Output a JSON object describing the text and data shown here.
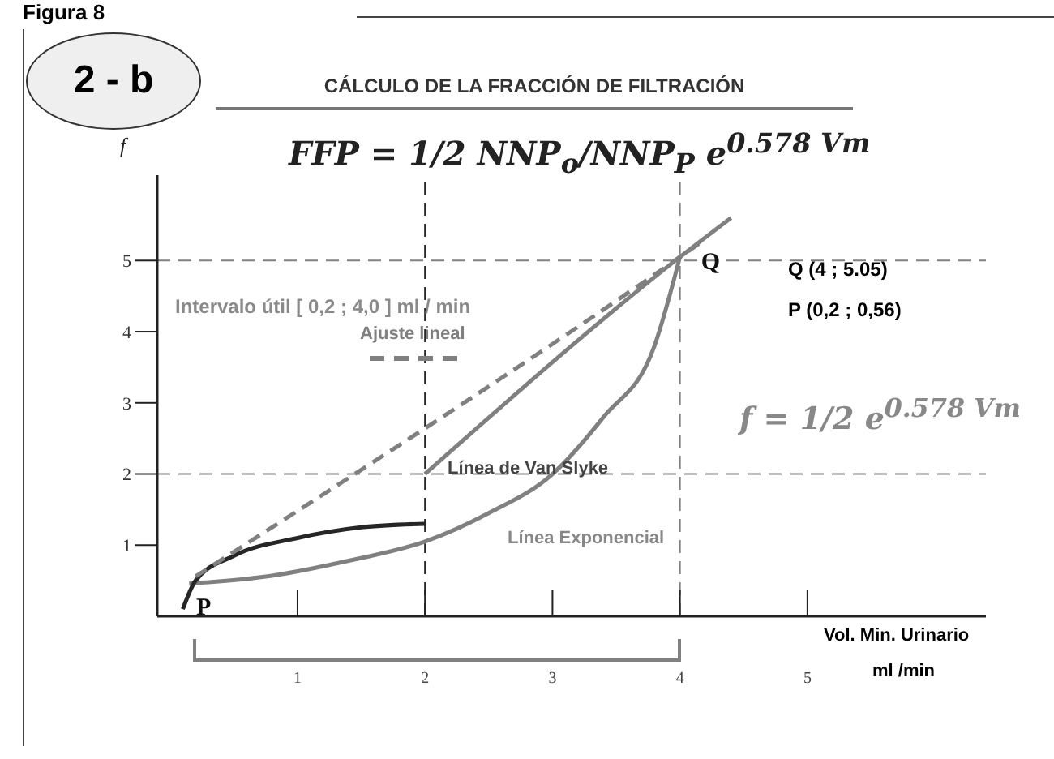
{
  "chart_data": {
    "type": "line",
    "title": "CÁLCULO DE LA FRACCIÓN DE FILTRACIÓN",
    "xlabel": "Vol. Min. Urinario\nml /min",
    "ylabel": "f",
    "xlim": [
      -0.1,
      6.4
    ],
    "xticks": [
      1,
      2,
      3,
      4,
      5
    ],
    "ylim": [
      0,
      6.2
    ],
    "yticks": [
      1,
      2,
      3,
      4,
      5
    ],
    "grid": false,
    "legend": false,
    "marker": "none",
    "series": [
      {
        "name": "Línea Exponencial",
        "color": "#808080",
        "x": [
          0.15,
          0.8,
          1.4,
          2,
          2.5,
          3,
          3.4,
          3.8,
          4
        ],
        "values": [
          0.46,
          0.57,
          0.78,
          1.05,
          1.45,
          2.0,
          2.8,
          3.8,
          5.05
        ]
      },
      {
        "color": "#262626",
        "x": [
          0.1,
          0.2,
          0.5,
          1,
          1.5,
          2
        ],
        "values": [
          0.1,
          0.5,
          0.85,
          1.1,
          1.25,
          1.3
        ]
      },
      {
        "name": "Línea de Van Slyke",
        "color": "#808080",
        "x": [
          2,
          4,
          4.4
        ],
        "values": [
          2,
          5.05,
          5.6
        ]
      },
      {
        "name": "Ajuste lineal",
        "color": "#808080",
        "line_style": "dashed",
        "x": [
          0.2,
          4,
          4.2
        ],
        "values": [
          0.56,
          5.05,
          5.3
        ]
      }
    ],
    "ref_lines": [
      {
        "axis": "y",
        "value": 5,
        "line_style": "dashed",
        "color": "#808080"
      },
      {
        "axis": "y",
        "value": 2,
        "line_style": "dashed",
        "color": "#808080"
      },
      {
        "axis": "x",
        "value": 2,
        "line_style": "dashed",
        "color": "#262626"
      },
      {
        "axis": "x",
        "value": 4,
        "line_style": "dashed",
        "color": "#808080"
      }
    ],
    "annotations": [
      {
        "text": "P",
        "x": 0.2,
        "y": 0.56
      },
      {
        "text": "Q",
        "x": 4,
        "y": 5.05
      },
      "Figura 8",
      "2 - b",
      "FFP = 1/2 NNP$_{o}$/NNP$_{P}$ e$^{0.578 Vm}$",
      "Intervalo útil  [ 0,2 ; 4,0 ]  ml / min",
      "Q (4 ; 5.05)",
      "P (0,2 ; 0,56)",
      "f = 1/2 e$^{0.578 Vm}$"
    ]
  }
}
